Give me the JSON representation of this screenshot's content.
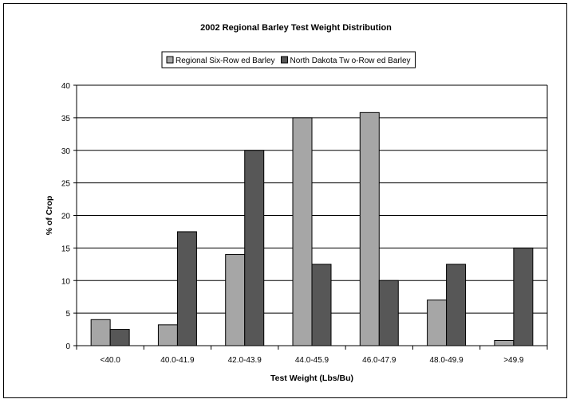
{
  "colors": {
    "series_1": "#a6a6a6",
    "series_2": "#575757",
    "gridline": "#000000",
    "background": "#ffffff"
  },
  "chart_data": {
    "type": "bar",
    "title": "2002 Regional Barley Test Weight Distribution",
    "xlabel": "Test Weight (Lbs/Bu)",
    "ylabel": "% of Crop",
    "ylim": [
      0,
      40
    ],
    "yticks": [
      0,
      5,
      10,
      15,
      20,
      25,
      30,
      35,
      40
    ],
    "grid": true,
    "legend_position": "top-center",
    "categories": [
      "<40.0",
      "40.0-41.9",
      "42.0-43.9",
      "44.0-45.9",
      "46.0-47.9",
      "48.0-49.9",
      ">49.9"
    ],
    "series": [
      {
        "name": "Regional Six-Row ed Barley",
        "color": "#a6a6a6",
        "values": [
          4.0,
          3.2,
          14.0,
          35.0,
          35.8,
          7.0,
          0.8
        ]
      },
      {
        "name": "North Dakota Tw o-Row ed Barley",
        "color": "#575757",
        "values": [
          2.5,
          17.5,
          30.0,
          12.5,
          10.0,
          12.5,
          15.0
        ]
      }
    ]
  }
}
